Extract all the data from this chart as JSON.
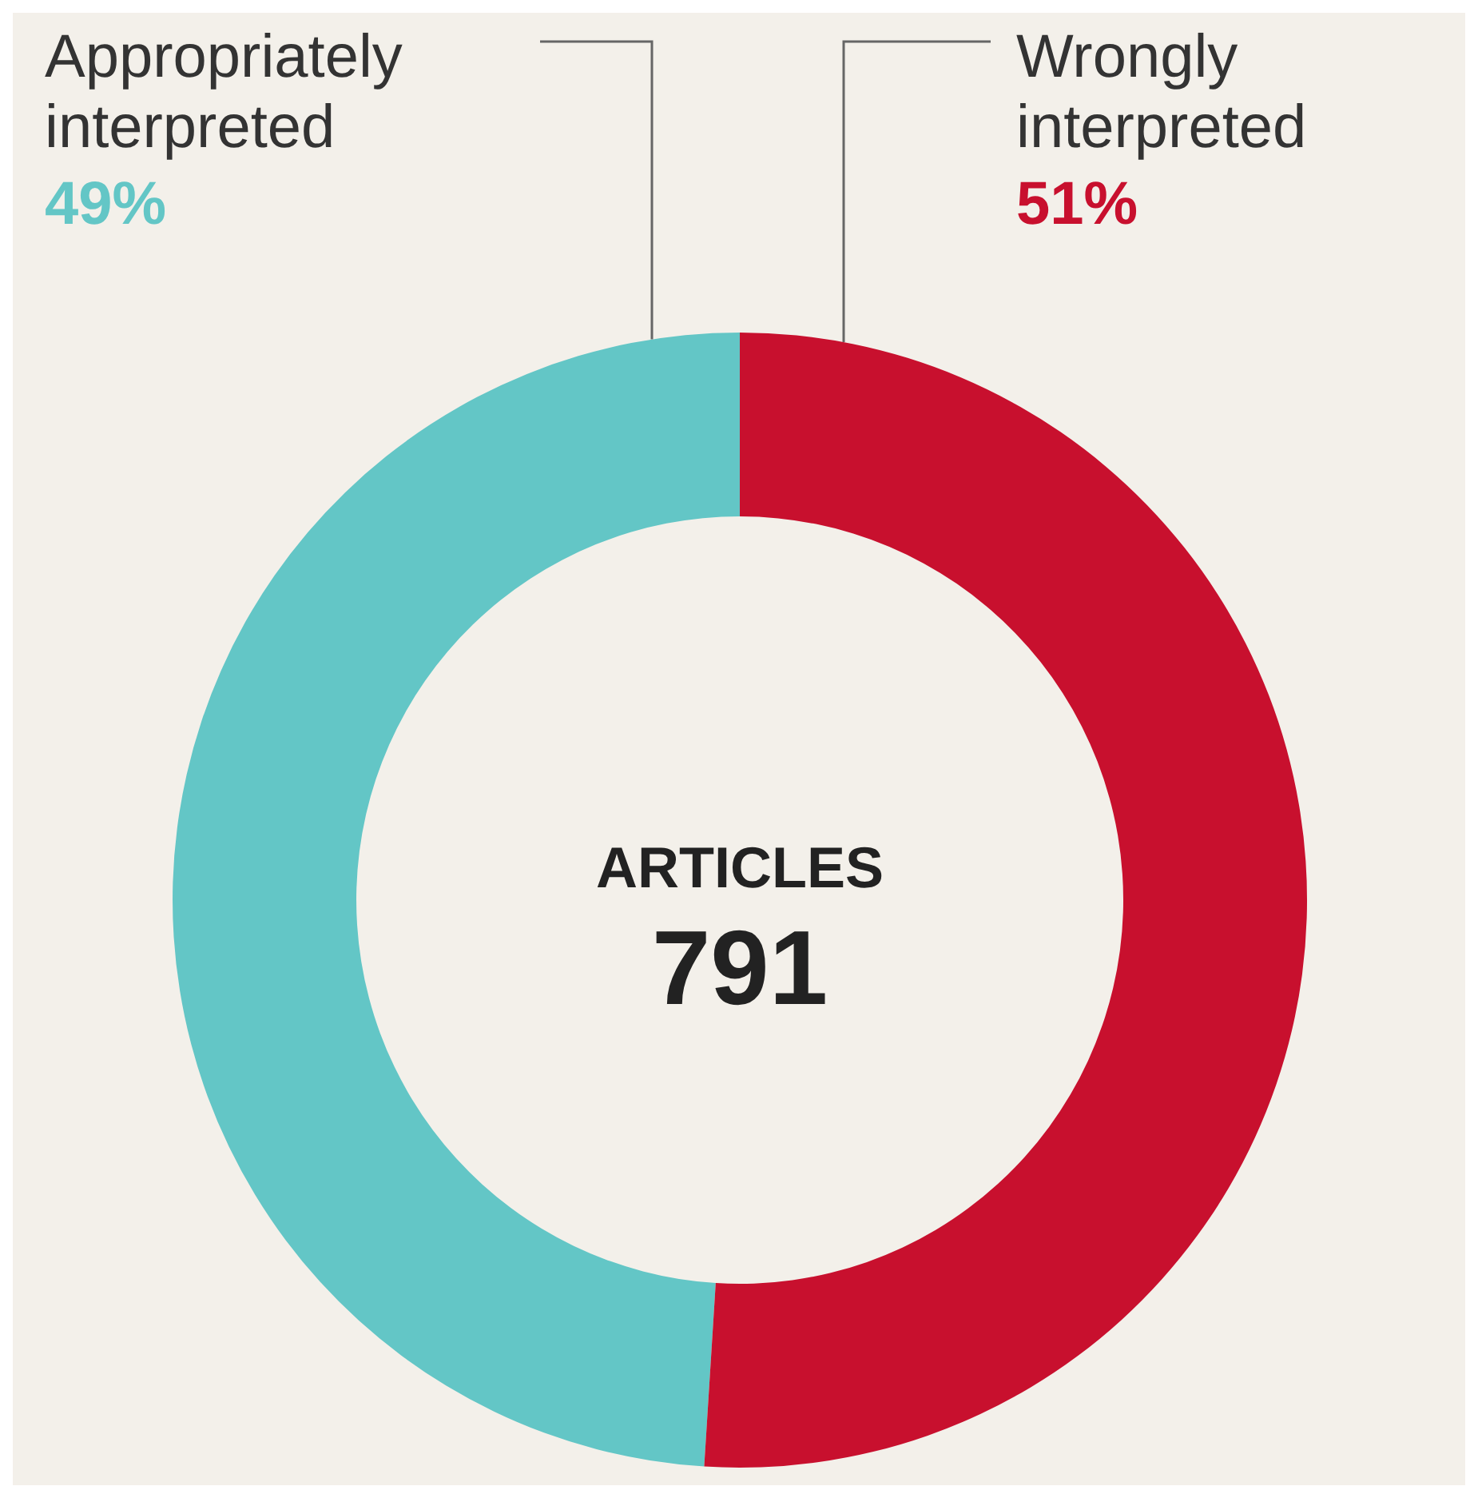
{
  "chart_data": {
    "type": "donut",
    "categories": [
      "Appropriately interpreted",
      "Wrongly interpreted"
    ],
    "values": [
      49,
      51
    ],
    "colors": [
      "#63c6c6",
      "#c8102e"
    ],
    "value_labels": [
      "49%",
      "51%"
    ],
    "annotations": [
      "ARTICLES",
      "791"
    ]
  }
}
